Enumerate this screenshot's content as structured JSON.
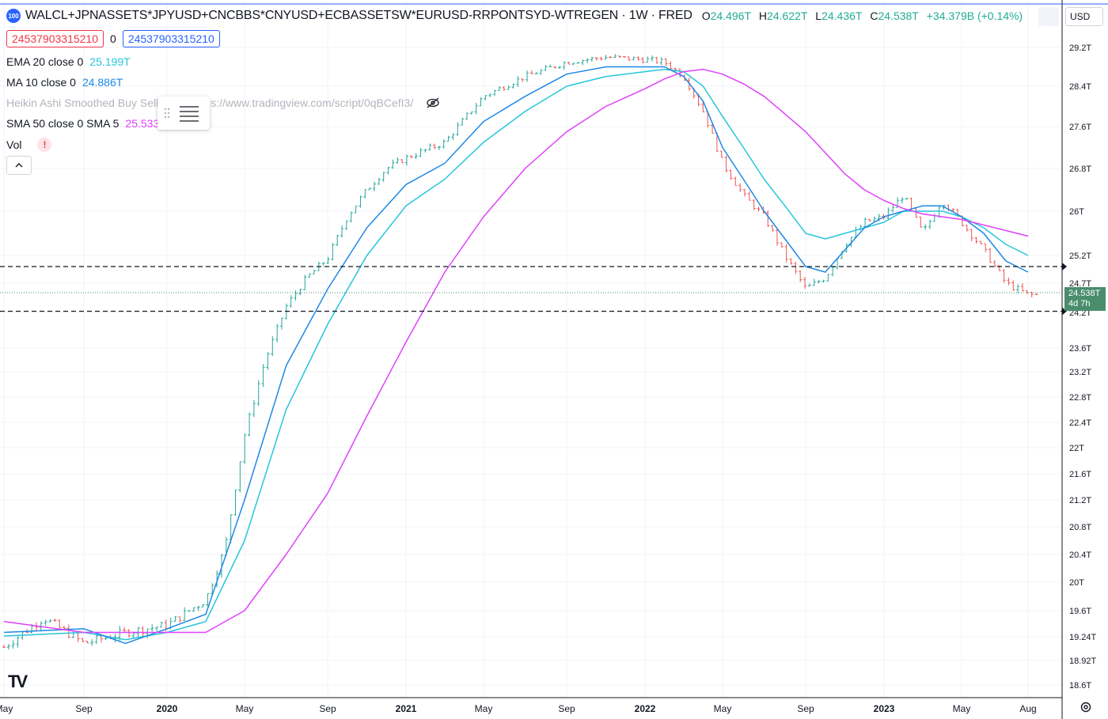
{
  "header": {
    "badge": "100",
    "symbol": "WALCL+JPNASSETS*JPYUSD+CNCBBS*CNYUSD+ECBASSETSW*EURUSD-RRPONTSYD-WTREGEN · 1W · FRED",
    "ohlc": [
      {
        "key": "O",
        "value": "24.496T"
      },
      {
        "key": "H",
        "value": "24.622T"
      },
      {
        "key": "L",
        "value": "24.436T"
      },
      {
        "key": "C",
        "value": "24.538T"
      }
    ],
    "change": "+34.379B (+0.14%)"
  },
  "inputs": {
    "left_value": "24537903315210",
    "middle": "0",
    "right_value": "24537903315210"
  },
  "legend": {
    "ema_label": "EMA 20 close 0",
    "ema_value": "25.199T",
    "ma_label": "MA 10 close 0",
    "ma_value": "24.886T",
    "heikin_label": "Heikin Ashi Smoothed Buy Sell",
    "heikin_url": "s://www.tradingview.com/script/0qBCefI3/",
    "sma_label": "SMA 50 close 0 SMA 5",
    "sma_value": "25.533T",
    "vol_label": "Vol",
    "warn": "!"
  },
  "controls": {
    "currency": "USD",
    "collapse_icon": "chevron-up-icon",
    "price_tag_value": "24.538T",
    "price_tag_countdown": "4d 7h",
    "logo": "TV"
  },
  "colors": {
    "up": "#26a69a",
    "down": "#ef5350",
    "ema": "#26c6da",
    "ma": "#1e88e5",
    "sma": "#e040fb",
    "price_tag": "#4a8d6d"
  },
  "chart_data": {
    "type": "line",
    "y_axis_labels": [
      "29.2T",
      "28.4T",
      "27.6T",
      "26.8T",
      "26T",
      "25.2T",
      "24.7T",
      "24.2T",
      "23.6T",
      "23.2T",
      "22.8T",
      "22.4T",
      "22T",
      "21.6T",
      "21.2T",
      "20.8T",
      "20.4T",
      "20T",
      "19.6T",
      "19.24T",
      "18.92T",
      "18.6T"
    ],
    "x_axis_labels": [
      "May",
      "Sep",
      "2020",
      "May",
      "Sep",
      "2021",
      "May",
      "Sep",
      "2022",
      "May",
      "Sep",
      "2023",
      "May",
      "Aug"
    ],
    "ylim": [
      18.6,
      29.35
    ],
    "horizontal_lines": [
      25.0,
      24.22
    ],
    "last_price": 24.538,
    "price_series": {
      "name": "Close",
      "x": [
        "2019-05",
        "2019-07",
        "2019-09",
        "2019-11",
        "2020-01",
        "2020-03",
        "2020-04",
        "2020-05",
        "2020-06",
        "2020-07",
        "2020-08",
        "2020-09",
        "2020-10",
        "2020-11",
        "2020-12",
        "2021-01",
        "2021-03",
        "2021-05",
        "2021-07",
        "2021-09",
        "2021-11",
        "2022-01",
        "2022-02",
        "2022-03",
        "2022-04",
        "2022-05",
        "2022-06",
        "2022-07",
        "2022-08",
        "2022-09",
        "2022-10",
        "2022-11",
        "2022-12",
        "2023-01",
        "2023-02",
        "2023-03",
        "2023-04",
        "2023-05",
        "2023-06",
        "2023-07",
        "2023-08"
      ],
      "y": [
        19.1,
        19.5,
        19.15,
        19.3,
        19.4,
        19.75,
        20.5,
        22.2,
        23.4,
        24.3,
        24.8,
        25.15,
        25.9,
        26.4,
        26.8,
        27.0,
        27.3,
        28.2,
        28.6,
        28.9,
        29.0,
        28.95,
        28.9,
        28.6,
        27.9,
        26.9,
        26.3,
        25.9,
        25.2,
        24.6,
        24.8,
        25.4,
        25.8,
        25.9,
        26.3,
        25.6,
        26.2,
        25.8,
        25.3,
        24.7,
        24.5
      ]
    },
    "series": [
      {
        "name": "EMA 20 close 0",
        "x": [
          "2019-05",
          "2019-09",
          "2019-11",
          "2020-01",
          "2020-03",
          "2020-05",
          "2020-07",
          "2020-09",
          "2020-11",
          "2021-01",
          "2021-03",
          "2021-05",
          "2021-07",
          "2021-09",
          "2021-11",
          "2022-01",
          "2022-02",
          "2022-03",
          "2022-04",
          "2022-05",
          "2022-06",
          "2022-07",
          "2022-08",
          "2022-09",
          "2022-10",
          "2022-11",
          "2022-12",
          "2023-01",
          "2023-02",
          "2023-03",
          "2023-04",
          "2023-05",
          "2023-06",
          "2023-07",
          "2023-08"
        ],
        "y": [
          19.25,
          19.3,
          19.2,
          19.3,
          19.45,
          20.6,
          22.6,
          24.0,
          25.2,
          26.1,
          26.6,
          27.3,
          27.9,
          28.4,
          28.6,
          28.7,
          28.75,
          28.7,
          28.4,
          27.8,
          27.2,
          26.6,
          26.1,
          25.6,
          25.5,
          25.6,
          25.7,
          25.8,
          26.0,
          26.0,
          26.0,
          25.9,
          25.7,
          25.4,
          25.2
        ]
      },
      {
        "name": "MA 10 close 0",
        "x": [
          "2019-05",
          "2019-09",
          "2019-11",
          "2020-01",
          "2020-03",
          "2020-05",
          "2020-07",
          "2020-09",
          "2020-11",
          "2021-01",
          "2021-03",
          "2021-05",
          "2021-07",
          "2021-09",
          "2021-11",
          "2022-01",
          "2022-02",
          "2022-03",
          "2022-04",
          "2022-05",
          "2022-06",
          "2022-07",
          "2022-08",
          "2022-09",
          "2022-10",
          "2022-11",
          "2022-12",
          "2023-01",
          "2023-02",
          "2023-03",
          "2023-04",
          "2023-05",
          "2023-06",
          "2023-07",
          "2023-08"
        ],
        "y": [
          19.3,
          19.35,
          19.15,
          19.35,
          19.55,
          21.2,
          23.3,
          24.6,
          25.7,
          26.5,
          26.9,
          27.7,
          28.2,
          28.65,
          28.8,
          28.8,
          28.8,
          28.6,
          28.1,
          27.2,
          26.6,
          26.0,
          25.5,
          25.0,
          24.9,
          25.3,
          25.7,
          25.9,
          26.0,
          26.1,
          26.1,
          25.9,
          25.6,
          25.1,
          24.9
        ]
      },
      {
        "name": "SMA 50 close 0",
        "x": [
          "2019-05",
          "2019-09",
          "2019-11",
          "2020-01",
          "2020-03",
          "2020-05",
          "2020-07",
          "2020-09",
          "2020-11",
          "2021-01",
          "2021-03",
          "2021-05",
          "2021-07",
          "2021-09",
          "2021-11",
          "2022-01",
          "2022-02",
          "2022-03",
          "2022-04",
          "2022-05",
          "2022-06",
          "2022-07",
          "2022-08",
          "2022-09",
          "2022-10",
          "2022-11",
          "2022-12",
          "2023-01",
          "2023-02",
          "2023-03",
          "2023-04",
          "2023-05",
          "2023-06",
          "2023-07",
          "2023-08"
        ],
        "y": [
          19.45,
          19.3,
          19.3,
          19.3,
          19.3,
          19.6,
          20.4,
          21.3,
          22.5,
          23.7,
          24.9,
          25.9,
          26.8,
          27.5,
          28.0,
          28.35,
          28.55,
          28.7,
          28.75,
          28.65,
          28.45,
          28.2,
          27.85,
          27.5,
          27.1,
          26.7,
          26.4,
          26.2,
          26.05,
          25.95,
          25.9,
          25.85,
          25.75,
          25.65,
          25.55
        ]
      }
    ]
  }
}
